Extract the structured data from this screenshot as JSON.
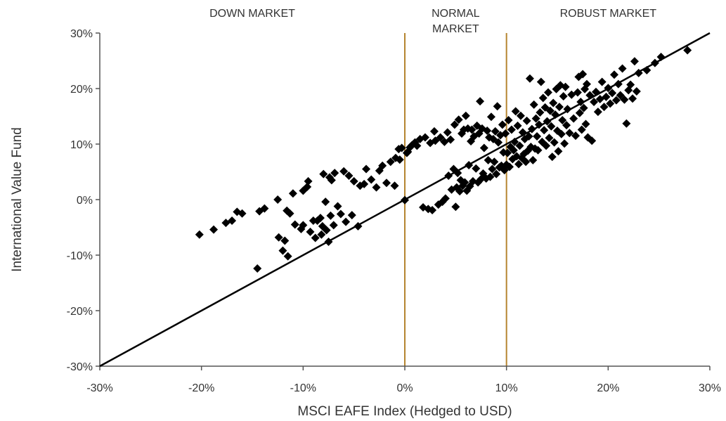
{
  "chart_data": {
    "type": "scatter",
    "title": "",
    "xlabel": "MSCI EAFE Index (Hedged to USD)",
    "ylabel": "International Value Fund",
    "xlim": [
      -30,
      30
    ],
    "ylim": [
      -30,
      30
    ],
    "x_ticks": [
      "-30%",
      "-20%",
      "-10%",
      "0%",
      "10%",
      "20%",
      "30%"
    ],
    "y_ticks": [
      "30%",
      "20%",
      "10%",
      "0%",
      "-10%",
      "-20%",
      "-30%"
    ],
    "x_tick_values": [
      -30,
      -20,
      -10,
      0,
      10,
      20,
      30
    ],
    "y_tick_values": [
      30,
      20,
      10,
      0,
      -10,
      -20,
      -30
    ],
    "grid": false,
    "marker": "diamond",
    "colors": {
      "points": "#000000",
      "reference_line": "#000000",
      "region_lines": "#b5842f",
      "text": "#333333"
    },
    "reference_line": {
      "from": [
        -30,
        -30
      ],
      "to": [
        30,
        30
      ]
    },
    "regions": [
      {
        "label": [
          "DOWN MARKET"
        ],
        "center_x": -15
      },
      {
        "label": [
          "NORMAL",
          "MARKET"
        ],
        "center_x": 5
      },
      {
        "label": [
          "ROBUST MARKET"
        ],
        "center_x": 20
      }
    ],
    "region_boundaries": [
      0,
      10
    ],
    "points": [
      [
        -20.2,
        -6.3
      ],
      [
        -18.8,
        -5.4
      ],
      [
        -17.6,
        -4.2
      ],
      [
        -17,
        -3.8
      ],
      [
        -16.5,
        -2.2
      ],
      [
        -16,
        -2.5
      ],
      [
        -14.5,
        -12.4
      ],
      [
        -14.3,
        -2.1
      ],
      [
        -13.8,
        -1.6
      ],
      [
        -12.5,
        0
      ],
      [
        -12.4,
        -6.8
      ],
      [
        -12,
        -9.2
      ],
      [
        -11.8,
        -7.4
      ],
      [
        -11.6,
        -2
      ],
      [
        -11.5,
        -10.2
      ],
      [
        -11.3,
        -2.5
      ],
      [
        -11,
        1.1
      ],
      [
        -10.8,
        -4.5
      ],
      [
        -10.2,
        -5.3
      ],
      [
        -10,
        1.6
      ],
      [
        -10,
        -4.6
      ],
      [
        -9.6,
        2.3
      ],
      [
        -9.5,
        3.3
      ],
      [
        -9.3,
        -5.8
      ],
      [
        -9,
        -3.8
      ],
      [
        -8.8,
        -6.9
      ],
      [
        -8.6,
        -3.8
      ],
      [
        -8.3,
        -3.3
      ],
      [
        -8.2,
        -6.3
      ],
      [
        -8.1,
        -4.8
      ],
      [
        -8,
        4.6
      ],
      [
        -7.8,
        -0.4
      ],
      [
        -7.7,
        -5.5
      ],
      [
        -7.5,
        -7.6
      ],
      [
        -7.4,
        4
      ],
      [
        -7.3,
        -2.9
      ],
      [
        -7.2,
        3.5
      ],
      [
        -7,
        -4.6
      ],
      [
        -6.9,
        4.8
      ],
      [
        -6.6,
        -1.2
      ],
      [
        -6.3,
        -2.6
      ],
      [
        -6,
        5.1
      ],
      [
        -5.8,
        -4
      ],
      [
        -5.5,
        4.3
      ],
      [
        -5.2,
        -2.8
      ],
      [
        -5,
        3.3
      ],
      [
        -4.6,
        -4.8
      ],
      [
        -4.4,
        2.5
      ],
      [
        -4,
        2.8
      ],
      [
        -3.8,
        5.5
      ],
      [
        -3.3,
        3.6
      ],
      [
        -2.8,
        2.2
      ],
      [
        -2.5,
        5.2
      ],
      [
        -2.2,
        6.1
      ],
      [
        -1.8,
        3
      ],
      [
        -1.4,
        6.8
      ],
      [
        -1,
        2.5
      ],
      [
        -0.9,
        7.5
      ],
      [
        -0.6,
        9.1
      ],
      [
        -0.5,
        7.2
      ],
      [
        -0.3,
        9.3
      ],
      [
        0,
        -0.1
      ],
      [
        0.2,
        8.4
      ],
      [
        0.3,
        8.6
      ],
      [
        0.5,
        9.4
      ],
      [
        0.7,
        9.8
      ],
      [
        1,
        10.3
      ],
      [
        1.2,
        9.7
      ],
      [
        1.5,
        10.9
      ],
      [
        1.8,
        -1.4
      ],
      [
        2,
        11.2
      ],
      [
        2.3,
        -1.7
      ],
      [
        2.5,
        10.2
      ],
      [
        2.7,
        -1.9
      ],
      [
        2.9,
        12.3
      ],
      [
        3,
        10.6
      ],
      [
        3.3,
        -0.9
      ],
      [
        3.5,
        11.2
      ],
      [
        3.7,
        -0.4
      ],
      [
        3.9,
        10.4
      ],
      [
        4,
        0.2
      ],
      [
        4.2,
        12.1
      ],
      [
        4.3,
        4.3
      ],
      [
        4.5,
        10.8
      ],
      [
        4.6,
        1.8
      ],
      [
        4.8,
        5.5
      ],
      [
        4.9,
        13.5
      ],
      [
        5,
        -1.3
      ],
      [
        5.1,
        2.2
      ],
      [
        5.2,
        4.8
      ],
      [
        5.3,
        14.4
      ],
      [
        5.4,
        1.5
      ],
      [
        5.5,
        3.5
      ],
      [
        5.6,
        11.9
      ],
      [
        5.7,
        2.5
      ],
      [
        5.8,
        12.6
      ],
      [
        5.9,
        3.1
      ],
      [
        6,
        15.1
      ],
      [
        6.1,
        1.6
      ],
      [
        6.2,
        12.8
      ],
      [
        6.3,
        6.2
      ],
      [
        6.4,
        2.4
      ],
      [
        6.5,
        10.5
      ],
      [
        6.6,
        12.6
      ],
      [
        6.7,
        3.3
      ],
      [
        6.8,
        11.4
      ],
      [
        7,
        5.6
      ],
      [
        7.1,
        13.3
      ],
      [
        7.2,
        3.1
      ],
      [
        7.3,
        11.9
      ],
      [
        7.4,
        17.7
      ],
      [
        7.5,
        3.7
      ],
      [
        7.6,
        12.8
      ],
      [
        7.7,
        4.7
      ],
      [
        7.8,
        9.3
      ],
      [
        8,
        3.8
      ],
      [
        8.1,
        12.4
      ],
      [
        8.2,
        7.1
      ],
      [
        8.3,
        11.2
      ],
      [
        8.4,
        4.1
      ],
      [
        8.5,
        14.9
      ],
      [
        8.6,
        5.5
      ],
      [
        8.7,
        10.9
      ],
      [
        8.8,
        6.8
      ],
      [
        8.9,
        12.3
      ],
      [
        9,
        4.6
      ],
      [
        9.1,
        16.8
      ],
      [
        9.2,
        10.3
      ],
      [
        9.3,
        5.8
      ],
      [
        9.4,
        11.6
      ],
      [
        9.5,
        6.1
      ],
      [
        9.6,
        13.5
      ],
      [
        9.7,
        8.5
      ],
      [
        9.8,
        5.3
      ],
      [
        9.9,
        11.9
      ],
      [
        10,
        6.3
      ],
      [
        10.1,
        8.4
      ],
      [
        10.2,
        14.3
      ],
      [
        10.3,
        5.9
      ],
      [
        10.4,
        9.5
      ],
      [
        10.5,
        12.6
      ],
      [
        10.6,
        7.3
      ],
      [
        10.7,
        8.9
      ],
      [
        10.8,
        10.4
      ],
      [
        10.9,
        15.9
      ],
      [
        11,
        7.8
      ],
      [
        11.1,
        13.3
      ],
      [
        11.2,
        6.4
      ],
      [
        11.3,
        9.7
      ],
      [
        11.4,
        15.1
      ],
      [
        11.5,
        7.5
      ],
      [
        11.6,
        12.1
      ],
      [
        11.7,
        8.2
      ],
      [
        11.8,
        10.9
      ],
      [
        11.9,
        6.8
      ],
      [
        12,
        14.2
      ],
      [
        12.1,
        8.8
      ],
      [
        12.2,
        11.4
      ],
      [
        12.3,
        21.8
      ],
      [
        12.4,
        9.5
      ],
      [
        12.5,
        12.7
      ],
      [
        12.6,
        7.1
      ],
      [
        12.7,
        17.1
      ],
      [
        12.8,
        9.2
      ],
      [
        12.9,
        14.6
      ],
      [
        13,
        11.4
      ],
      [
        13.1,
        8.9
      ],
      [
        13.2,
        13.5
      ],
      [
        13.3,
        15.7
      ],
      [
        13.4,
        21.2
      ],
      [
        13.5,
        10.4
      ],
      [
        13.6,
        18.3
      ],
      [
        13.7,
        12.5
      ],
      [
        13.8,
        16.6
      ],
      [
        13.9,
        9.7
      ],
      [
        14,
        14.1
      ],
      [
        14.1,
        19.3
      ],
      [
        14.2,
        11.1
      ],
      [
        14.3,
        16
      ],
      [
        14.4,
        13.2
      ],
      [
        14.5,
        7.7
      ],
      [
        14.6,
        17.4
      ],
      [
        14.7,
        10.3
      ],
      [
        14.8,
        15.3
      ],
      [
        14.9,
        19.9
      ],
      [
        15,
        12.4
      ],
      [
        15.1,
        8.7
      ],
      [
        15.2,
        16.7
      ],
      [
        15.3,
        20.6
      ],
      [
        15.4,
        11.8
      ],
      [
        15.5,
        14.3
      ],
      [
        15.6,
        18.6
      ],
      [
        15.7,
        10.1
      ],
      [
        15.8,
        20.3
      ],
      [
        15.9,
        13.4
      ],
      [
        16,
        16.3
      ],
      [
        16.2,
        12
      ],
      [
        16.4,
        18.9
      ],
      [
        16.6,
        14.6
      ],
      [
        16.8,
        11.5
      ],
      [
        17,
        19.3
      ],
      [
        17.1,
        22.1
      ],
      [
        17.2,
        15.6
      ],
      [
        17.3,
        17.6
      ],
      [
        17.4,
        12.6
      ],
      [
        17.5,
        22.6
      ],
      [
        17.6,
        16.5
      ],
      [
        17.7,
        19.9
      ],
      [
        17.8,
        13.6
      ],
      [
        17.9,
        20.8
      ],
      [
        18,
        11.2
      ],
      [
        18.2,
        18.8
      ],
      [
        18.4,
        10.6
      ],
      [
        18.6,
        17.6
      ],
      [
        18.8,
        19.4
      ],
      [
        19,
        15.8
      ],
      [
        19.2,
        18.1
      ],
      [
        19.4,
        21.2
      ],
      [
        19.6,
        16.7
      ],
      [
        19.8,
        18.5
      ],
      [
        20,
        20.1
      ],
      [
        20.2,
        17.3
      ],
      [
        20.4,
        19.2
      ],
      [
        20.6,
        22.5
      ],
      [
        20.8,
        17.9
      ],
      [
        21,
        20.8
      ],
      [
        21.2,
        18.8
      ],
      [
        21.4,
        23.6
      ],
      [
        21.6,
        18
      ],
      [
        21.8,
        13.7
      ],
      [
        22,
        19.7
      ],
      [
        22.2,
        20.7
      ],
      [
        22.4,
        18.2
      ],
      [
        22.6,
        24.9
      ],
      [
        22.8,
        19.5
      ],
      [
        23,
        22.8
      ],
      [
        23.8,
        23.3
      ],
      [
        24.6,
        24.6
      ],
      [
        25.2,
        25.7
      ],
      [
        27.8,
        26.9
      ]
    ]
  }
}
